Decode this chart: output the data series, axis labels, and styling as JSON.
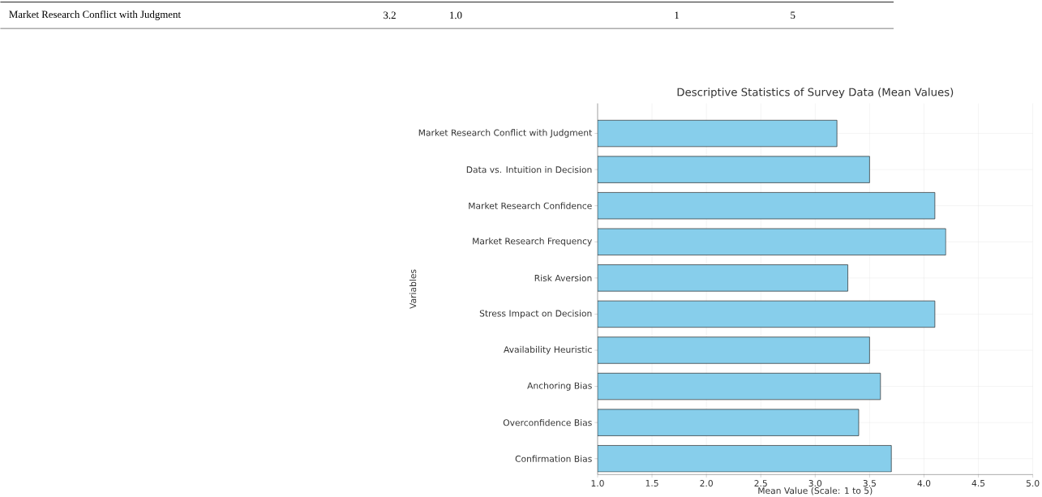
{
  "chart_data": {
    "type": "bar",
    "orientation": "horizontal",
    "title": "Descriptive Statistics of Survey Data (Mean Values)",
    "xlabel": "Mean Value (Scale: 1 to 5)",
    "ylabel": "Variables",
    "categories": [
      "Market Research Conflict with Judgment",
      "Data vs. Intuition in Decision",
      "Market Research Confidence",
      "Market Research Frequency",
      "Risk Aversion",
      "Stress Impact on Decision",
      "Availability Heuristic",
      "Anchoring Bias",
      "Overconfidence Bias",
      "Confirmation Bias"
    ],
    "values": [
      3.2,
      3.5,
      4.1,
      4.2,
      3.3,
      4.1,
      3.5,
      3.6,
      3.4,
      3.7
    ],
    "color": "#87ceeb",
    "xlim": [
      1.0,
      5.0
    ],
    "xticks": [
      {
        "value": 1.0,
        "label": "1.0"
      },
      {
        "value": 1.5,
        "label": "1.5"
      },
      {
        "value": 2.0,
        "label": "2.0"
      },
      {
        "value": 2.5,
        "label": "2.5"
      },
      {
        "value": 3.0,
        "label": "3.0"
      },
      {
        "value": 3.5,
        "label": "3.5"
      },
      {
        "value": 4.0,
        "label": "4.0"
      },
      {
        "value": 4.5,
        "label": "4.5"
      },
      {
        "value": 5.0,
        "label": "5.0"
      }
    ],
    "grid": true,
    "annotations": [
      "Market Research Conflict with Judgment",
      "3.2",
      "1.0",
      "1",
      "5"
    ]
  }
}
